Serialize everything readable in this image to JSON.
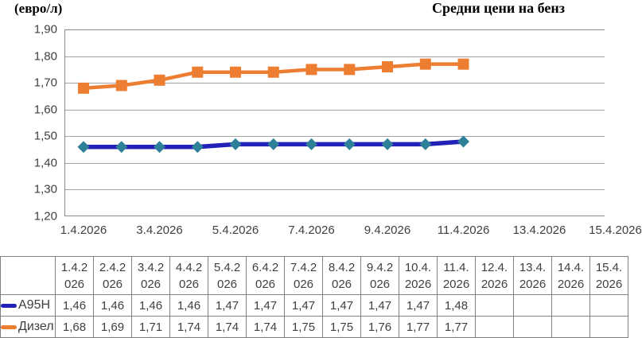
{
  "unit_label": "(евро/л)",
  "title": "Средни цени на бенз",
  "chart_data": {
    "type": "line",
    "title": "Средни цени на бенз",
    "ylabel": "(евро/л)",
    "x": [
      "1.4.2026",
      "2.4.2026",
      "3.4.2026",
      "4.4.2026",
      "5.4.2026",
      "6.4.2026",
      "7.4.2026",
      "8.4.2026",
      "9.4.2026",
      "10.4.2026",
      "11.4.2026"
    ],
    "x_axis_ticks": [
      "1.4.2026",
      "3.4.2026",
      "5.4.2026",
      "7.4.2026",
      "9.4.2026",
      "11.4.2026",
      "13.4.2026",
      "15.4.2026"
    ],
    "y_ticks": [
      "1,90",
      "1,80",
      "1,70",
      "1,60",
      "1,50",
      "1,40",
      "1,30",
      "1,20"
    ],
    "ylim": [
      1.2,
      1.9
    ],
    "grid": true,
    "legend_position": "table-left",
    "series": [
      {
        "name": "Дизел",
        "marker": "square",
        "line_color": "#ED7D31",
        "marker_color": "#ED7D31",
        "values": [
          1.68,
          1.69,
          1.71,
          1.74,
          1.74,
          1.74,
          1.75,
          1.75,
          1.76,
          1.77,
          1.77
        ]
      },
      {
        "name": "А95Н",
        "marker": "diamond",
        "line_color": "#2121B8",
        "marker_color": "#2E7F98",
        "values": [
          1.46,
          1.46,
          1.46,
          1.46,
          1.47,
          1.47,
          1.47,
          1.47,
          1.47,
          1.47,
          1.48
        ]
      }
    ]
  },
  "table": {
    "columns": [
      "1.4.2026",
      "2.4.2026",
      "3.4.2026",
      "4.4.2026",
      "5.4.2026",
      "6.4.2026",
      "7.4.2026",
      "8.4.2026",
      "9.4.2026",
      "10.4.2026",
      "11.4.2026",
      "12.4.2026",
      "13.4.2026",
      "14.4.2026",
      "15.4.2026"
    ],
    "rows": [
      {
        "label": "А95Н",
        "key_color": "#2121B8",
        "cells": [
          "1,46",
          "1,46",
          "1,46",
          "1,46",
          "1,47",
          "1,47",
          "1,47",
          "1,47",
          "1,47",
          "1,47",
          "1,48",
          "",
          "",
          "",
          ""
        ]
      },
      {
        "label": "Дизел",
        "key_color": "#ED7D31",
        "cells": [
          "1,68",
          "1,69",
          "1,71",
          "1,74",
          "1,74",
          "1,74",
          "1,75",
          "1,75",
          "1,76",
          "1,77",
          "1,77",
          "",
          "",
          "",
          ""
        ]
      }
    ]
  },
  "colors": {
    "grid": "#A3A3A3",
    "plot_border": "#8C8C8C",
    "table_border": "#7F7F7F",
    "text": "#3F3F3F"
  }
}
